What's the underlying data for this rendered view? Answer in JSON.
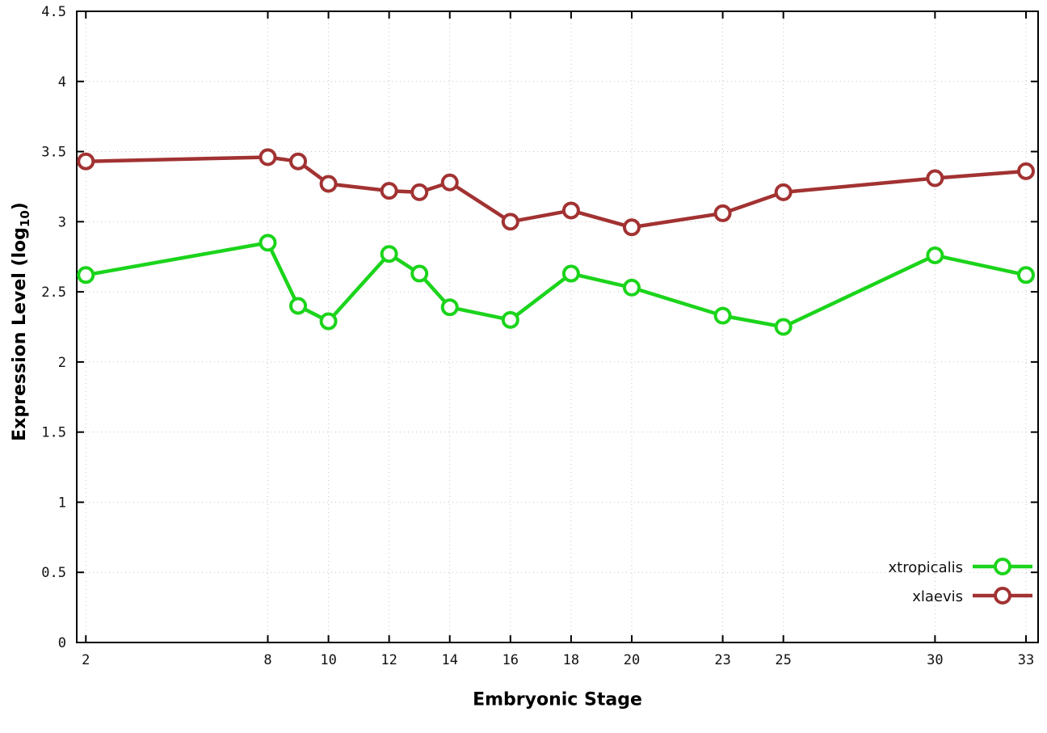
{
  "chart_data": {
    "type": "line",
    "title": "",
    "xlabel": "Embryonic Stage",
    "ylabel": {
      "main": "Expression Level (log",
      "sub": "10",
      "end": ")"
    },
    "xlim": [
      1.7,
      33.4
    ],
    "ylim": [
      0,
      4.5
    ],
    "xticks": [
      2,
      8,
      10,
      12,
      14,
      16,
      18,
      20,
      23,
      25,
      30,
      33
    ],
    "yticks": [
      0,
      0.5,
      1,
      1.5,
      2,
      2.5,
      3,
      3.5,
      4,
      4.5
    ],
    "grid": true,
    "legend_position": "bottom-right",
    "x": [
      2,
      8,
      9,
      10,
      12,
      13,
      14,
      16,
      18,
      20,
      23,
      25,
      30,
      33
    ],
    "series": [
      {
        "name": "xtropicalis",
        "color": "#1bd41b",
        "values": [
          2.62,
          2.85,
          2.4,
          2.29,
          2.77,
          2.63,
          2.39,
          2.3,
          2.63,
          2.53,
          2.33,
          2.25,
          2.76,
          2.62
        ]
      },
      {
        "name": "xlaevis",
        "color": "#a23232",
        "values": [
          3.43,
          3.46,
          3.43,
          3.27,
          3.22,
          3.21,
          3.28,
          3.0,
          3.08,
          2.96,
          3.06,
          3.21,
          3.31,
          3.36
        ]
      }
    ]
  }
}
